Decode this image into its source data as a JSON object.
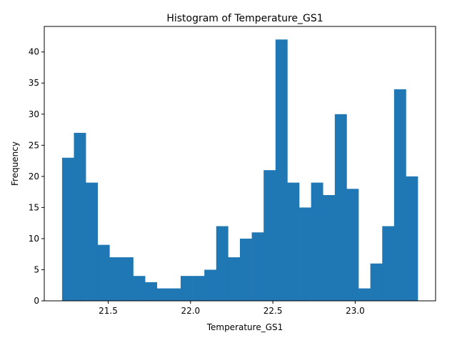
{
  "chart_data": {
    "type": "bar",
    "title": "Histogram of Temperature_GS1",
    "xlabel": "Temperature_GS1",
    "ylabel": "Frequency",
    "bin_edges": [
      21.22,
      21.292,
      21.364,
      21.436,
      21.508,
      21.58,
      21.652,
      21.724,
      21.796,
      21.868,
      21.94,
      22.012,
      22.084,
      22.156,
      22.228,
      22.3,
      22.372,
      22.444,
      22.516,
      22.588,
      22.66,
      22.732,
      22.804,
      22.876,
      22.948,
      23.02,
      23.092,
      23.164,
      23.236,
      23.308,
      23.38
    ],
    "values": [
      23,
      27,
      19,
      9,
      7,
      7,
      4,
      3,
      2,
      2,
      4,
      4,
      5,
      12,
      7,
      10,
      11,
      21,
      42,
      19,
      15,
      19,
      17,
      30,
      18,
      2,
      6,
      12,
      34,
      20
    ],
    "xlim": [
      21.112,
      23.488
    ],
    "ylim": [
      0,
      44.1
    ],
    "x_ticks": [
      21.5,
      22.0,
      22.5,
      23.0
    ],
    "x_tick_labels": [
      "21.5",
      "22.0",
      "22.5",
      "23.0"
    ],
    "y_ticks": [
      0,
      5,
      10,
      15,
      20,
      25,
      30,
      35,
      40
    ],
    "y_tick_labels": [
      "0",
      "5",
      "10",
      "15",
      "20",
      "25",
      "30",
      "35",
      "40"
    ],
    "grid": false,
    "bar_color": "#1f77b4"
  }
}
